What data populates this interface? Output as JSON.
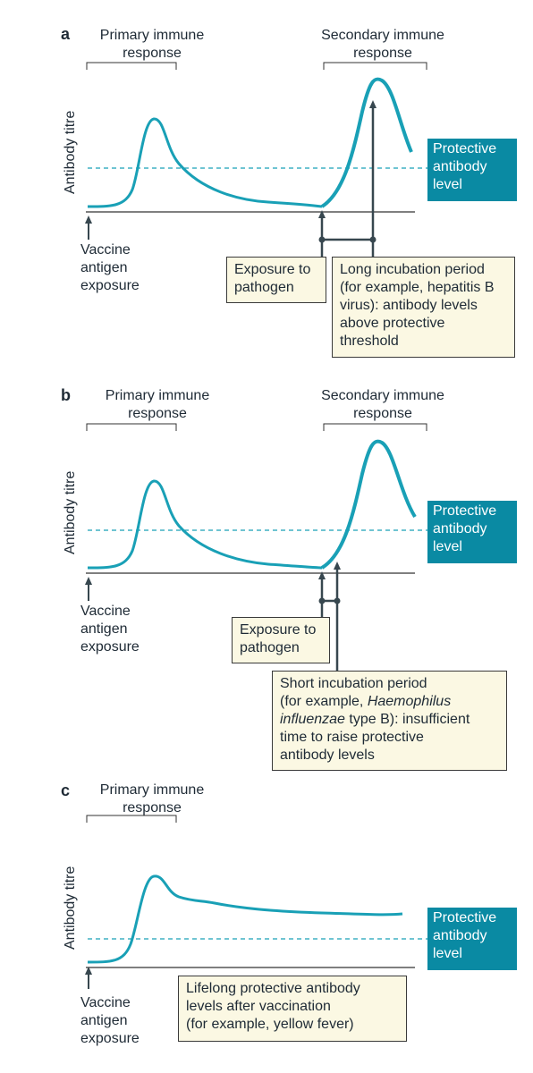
{
  "panels": [
    {
      "letter": "a",
      "primary_label": "Primary immune\nresponse",
      "secondary_label": "Secondary immune\nresponse",
      "y_axis": "Antibody titre",
      "vaccine": "Vaccine\nantigen\nexposure",
      "protective": "Protective\nantibody\nlevel",
      "exposure": "Exposure to\npathogen",
      "note": "Long incubation period\n(for example, hepatitis B\nvirus): antibody levels\nabove protective\nthreshold"
    },
    {
      "letter": "b",
      "primary_label": "Primary immune\nresponse",
      "secondary_label": "Secondary immune\nresponse",
      "y_axis": "Antibody titre",
      "vaccine": "Vaccine\nantigen\nexposure",
      "protective": "Protective\nantibody\nlevel",
      "exposure": "Exposure to\npathogen",
      "note_line1": "Short incubation period",
      "note_line2_pre": "(for example, ",
      "note_line2_em": "Haemophilus",
      "note_line3_em": "influenzae",
      "note_line3_post": " type B): insufficient",
      "note_line4": "time to raise protective",
      "note_line5": "antibody levels"
    },
    {
      "letter": "c",
      "primary_label": "Primary immune\nresponse",
      "y_axis": "Antibody titre",
      "vaccine": "Vaccine\nantigen\nexposure",
      "protective": "Protective\nantibody\nlevel",
      "note": "Lifelong protective antibody\nlevels after vaccination\n(for example, yellow fever)"
    }
  ],
  "colors": {
    "teal": "#0a8aa3",
    "curve": "#19a0b6",
    "dark": "#37474f",
    "note_bg": "#fbf8e3"
  }
}
